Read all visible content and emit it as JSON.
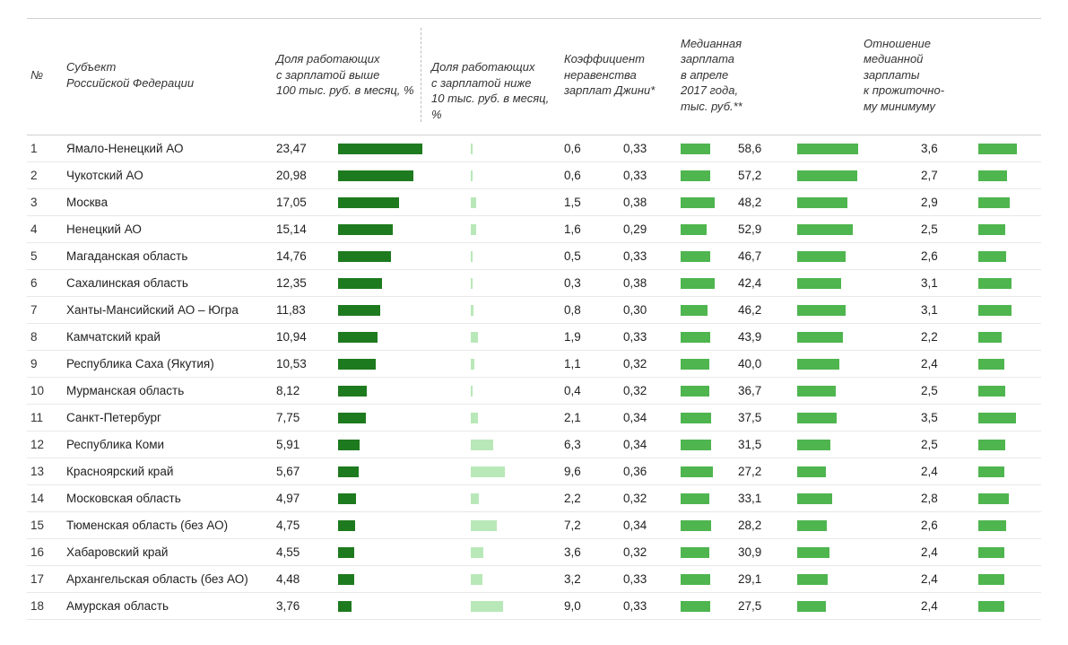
{
  "colors": {
    "bar_dark": "#1e7a1e",
    "bar_mid": "#4fb54f",
    "bar_light": "#86d686",
    "bar_pale": "#b8e8b8",
    "row_border": "#e8e8e8",
    "head_border": "#d0d0d0"
  },
  "headers": {
    "num": "№",
    "region": "Субъект\nРоссийской Федерации",
    "share_high": "Доля работающих\nс зарплатой выше\n100 тыс. руб. в месяц, %",
    "share_low": "Доля работающих\nс зарплатой ниже\n10 тыс. руб. в месяц, %",
    "gini": "Коэффициент\nнеравенства\nзарплат Джини*",
    "median": "Медианная\nзарплата\nв апреле\n2017 года,\nтыс. руб.**",
    "ratio": "Отношение\nмедианной\nзарплаты\nк прожиточно-\nму минимуму"
  },
  "scales": {
    "share_high_max": 25,
    "share_low_max": 25,
    "gini_max": 0.6,
    "median_max": 60,
    "ratio_max": 5
  },
  "rows": [
    {
      "n": 1,
      "region": "Ямало-Ненецкий АО",
      "high": "23,47",
      "high_v": 23.47,
      "low": "0,6",
      "low_v": 0.6,
      "gini": "0,33",
      "gini_v": 0.33,
      "median": "58,6",
      "median_v": 58.6,
      "ratio": "3,6",
      "ratio_v": 3.6
    },
    {
      "n": 2,
      "region": "Чукотский АО",
      "high": "20,98",
      "high_v": 20.98,
      "low": "0,6",
      "low_v": 0.6,
      "gini": "0,33",
      "gini_v": 0.33,
      "median": "57,2",
      "median_v": 57.2,
      "ratio": "2,7",
      "ratio_v": 2.7
    },
    {
      "n": 3,
      "region": "Москва",
      "high": "17,05",
      "high_v": 17.05,
      "low": "1,5",
      "low_v": 1.5,
      "gini": "0,38",
      "gini_v": 0.38,
      "median": "48,2",
      "median_v": 48.2,
      "ratio": "2,9",
      "ratio_v": 2.9
    },
    {
      "n": 4,
      "region": "Ненецкий АО",
      "high": "15,14",
      "high_v": 15.14,
      "low": "1,6",
      "low_v": 1.6,
      "gini": "0,29",
      "gini_v": 0.29,
      "median": "52,9",
      "median_v": 52.9,
      "ratio": "2,5",
      "ratio_v": 2.5
    },
    {
      "n": 5,
      "region": "Магаданская область",
      "high": "14,76",
      "high_v": 14.76,
      "low": "0,5",
      "low_v": 0.5,
      "gini": "0,33",
      "gini_v": 0.33,
      "median": "46,7",
      "median_v": 46.7,
      "ratio": "2,6",
      "ratio_v": 2.6
    },
    {
      "n": 6,
      "region": "Сахалинская область",
      "high": "12,35",
      "high_v": 12.35,
      "low": "0,3",
      "low_v": 0.3,
      "gini": "0,38",
      "gini_v": 0.38,
      "median": "42,4",
      "median_v": 42.4,
      "ratio": "3,1",
      "ratio_v": 3.1
    },
    {
      "n": 7,
      "region": "Ханты-Мансийский АО – Югра",
      "high": "11,83",
      "high_v": 11.83,
      "low": "0,8",
      "low_v": 0.8,
      "gini": "0,30",
      "gini_v": 0.3,
      "median": "46,2",
      "median_v": 46.2,
      "ratio": "3,1",
      "ratio_v": 3.1
    },
    {
      "n": 8,
      "region": "Камчатский край",
      "high": "10,94",
      "high_v": 10.94,
      "low": "1,9",
      "low_v": 1.9,
      "gini": "0,33",
      "gini_v": 0.33,
      "median": "43,9",
      "median_v": 43.9,
      "ratio": "2,2",
      "ratio_v": 2.2
    },
    {
      "n": 9,
      "region": "Республика Саха (Якутия)",
      "high": "10,53",
      "high_v": 10.53,
      "low": "1,1",
      "low_v": 1.1,
      "gini": "0,32",
      "gini_v": 0.32,
      "median": "40,0",
      "median_v": 40.0,
      "ratio": "2,4",
      "ratio_v": 2.4
    },
    {
      "n": 10,
      "region": "Мурманская область",
      "high": "8,12",
      "high_v": 8.12,
      "low": "0,4",
      "low_v": 0.4,
      "gini": "0,32",
      "gini_v": 0.32,
      "median": "36,7",
      "median_v": 36.7,
      "ratio": "2,5",
      "ratio_v": 2.5
    },
    {
      "n": 11,
      "region": "Санкт-Петербург",
      "high": "7,75",
      "high_v": 7.75,
      "low": "2,1",
      "low_v": 2.1,
      "gini": "0,34",
      "gini_v": 0.34,
      "median": "37,5",
      "median_v": 37.5,
      "ratio": "3,5",
      "ratio_v": 3.5
    },
    {
      "n": 12,
      "region": "Республика Коми",
      "high": "5,91",
      "high_v": 5.91,
      "low": "6,3",
      "low_v": 6.3,
      "gini": "0,34",
      "gini_v": 0.34,
      "median": "31,5",
      "median_v": 31.5,
      "ratio": "2,5",
      "ratio_v": 2.5
    },
    {
      "n": 13,
      "region": "Красноярский край",
      "high": "5,67",
      "high_v": 5.67,
      "low": "9,6",
      "low_v": 9.6,
      "gini": "0,36",
      "gini_v": 0.36,
      "median": "27,2",
      "median_v": 27.2,
      "ratio": "2,4",
      "ratio_v": 2.4
    },
    {
      "n": 14,
      "region": "Московская область",
      "high": "4,97",
      "high_v": 4.97,
      "low": "2,2",
      "low_v": 2.2,
      "gini": "0,32",
      "gini_v": 0.32,
      "median": "33,1",
      "median_v": 33.1,
      "ratio": "2,8",
      "ratio_v": 2.8
    },
    {
      "n": 15,
      "region": "Тюменская область (без АО)",
      "high": "4,75",
      "high_v": 4.75,
      "low": "7,2",
      "low_v": 7.2,
      "gini": "0,34",
      "gini_v": 0.34,
      "median": "28,2",
      "median_v": 28.2,
      "ratio": "2,6",
      "ratio_v": 2.6
    },
    {
      "n": 16,
      "region": "Хабаровский край",
      "high": "4,55",
      "high_v": 4.55,
      "low": "3,6",
      "low_v": 3.6,
      "gini": "0,32",
      "gini_v": 0.32,
      "median": "30,9",
      "median_v": 30.9,
      "ratio": "2,4",
      "ratio_v": 2.4
    },
    {
      "n": 17,
      "region": "Архангельская область (без АО)",
      "high": "4,48",
      "high_v": 4.48,
      "low": "3,2",
      "low_v": 3.2,
      "gini": "0,33",
      "gini_v": 0.33,
      "median": "29,1",
      "median_v": 29.1,
      "ratio": "2,4",
      "ratio_v": 2.4
    },
    {
      "n": 18,
      "region": "Амурская область",
      "high": "3,76",
      "high_v": 3.76,
      "low": "9,0",
      "low_v": 9.0,
      "gini": "0,33",
      "gini_v": 0.33,
      "median": "27,5",
      "median_v": 27.5,
      "ratio": "2,4",
      "ratio_v": 2.4
    }
  ]
}
